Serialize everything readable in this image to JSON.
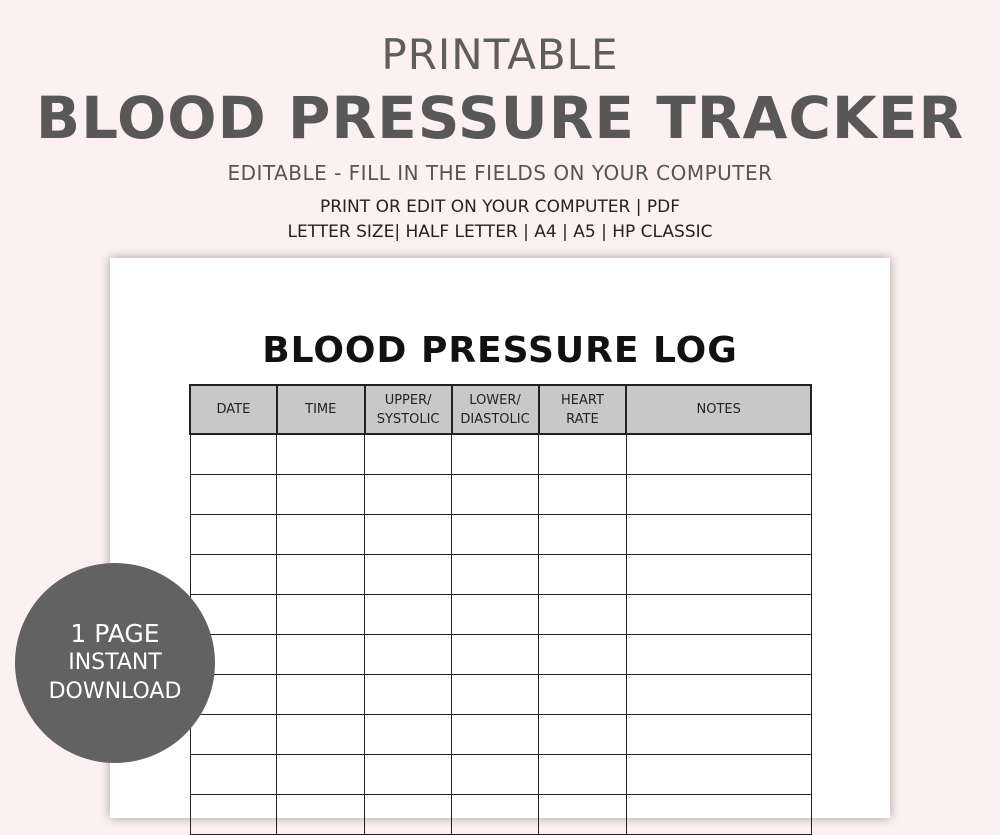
{
  "header": {
    "pretitle": "PRINTABLE",
    "title": "BLOOD PRESSURE TRACKER",
    "subtitle": "EDITABLE - FILL IN THE FIELDS ON YOUR COMPUTER",
    "line1": "PRINT OR EDIT ON YOUR COMPUTER | PDF",
    "line2": "LETTER SIZE| HALF LETTER | A4 | A5 | HP CLASSIC"
  },
  "log": {
    "title": "BLOOD PRESSURE LOG",
    "columns": [
      [
        "DATE"
      ],
      [
        "TIME"
      ],
      [
        "UPPER/",
        "SYSTOLIC"
      ],
      [
        "LOWER/",
        "DIASTOLIC"
      ],
      [
        "HEART",
        "RATE"
      ],
      [
        "NOTES"
      ]
    ],
    "rows": 10
  },
  "badge": {
    "line1": "1 PAGE",
    "line2": "INSTANT",
    "line3": "DOWNLOAD"
  },
  "colors": {
    "background": "#fcf1f0",
    "badge": "#626262",
    "header_fill": "#c8c8c8"
  }
}
